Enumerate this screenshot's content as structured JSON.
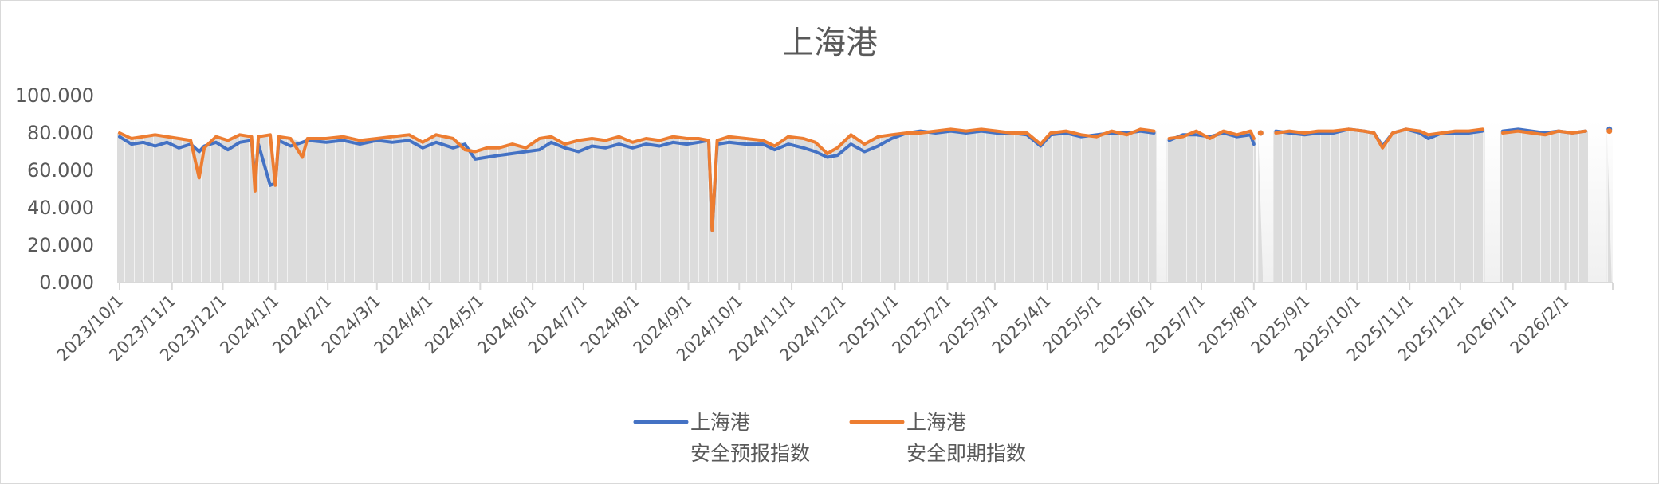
{
  "chart_data": {
    "type": "line",
    "title": "上海港",
    "xlabel": "",
    "ylabel": "",
    "ylim": [
      0,
      100
    ],
    "yticks": [
      "0.000",
      "20.000",
      "40.000",
      "60.000",
      "80.000",
      "100.000"
    ],
    "xlim": [
      "2023-10-01",
      "2026-03-01"
    ],
    "xticks": [
      "2023/10/1",
      "2023/11/1",
      "2023/12/1",
      "2024/1/1",
      "2024/2/1",
      "2024/3/1",
      "2024/4/1",
      "2024/5/1",
      "2024/6/1",
      "2024/7/1",
      "2024/8/1",
      "2024/9/1",
      "2024/10/1",
      "2024/11/1",
      "2024/12/1",
      "2025/1/1",
      "2025/2/1",
      "2025/3/1",
      "2025/4/1",
      "2025/5/1",
      "2025/6/1",
      "2025/7/1",
      "2025/8/1",
      "2025/9/1",
      "2025/10/1",
      "2025/11/1",
      "2025/12/1",
      "2026/1/1",
      "2026/2/1"
    ],
    "grid": false,
    "legend": "bottom",
    "colors": {
      "forecast": "#4472c4",
      "spot": "#ed7d31",
      "area": "#d9d9d9"
    },
    "series": [
      {
        "name": "上海港\n安全预报指数",
        "line1": "上海港",
        "line2": "安全预报指数",
        "key": "forecast"
      },
      {
        "name": "上海港\n安全即期指数",
        "line1": "上海港",
        "line2": "安全即期指数",
        "key": "spot"
      }
    ],
    "points": [
      [
        "2023-10-01",
        78,
        80
      ],
      [
        "2023-10-08",
        74,
        77
      ],
      [
        "2023-10-15",
        75,
        78
      ],
      [
        "2023-10-22",
        73,
        79
      ],
      [
        "2023-10-29",
        75,
        78
      ],
      [
        "2023-11-05",
        72,
        77
      ],
      [
        "2023-11-12",
        74,
        76
      ],
      [
        "2023-11-17",
        70,
        56
      ],
      [
        "2023-11-20",
        73,
        72
      ],
      [
        "2023-11-27",
        75,
        78
      ],
      [
        "2023-12-04",
        71,
        76
      ],
      [
        "2023-12-11",
        75,
        79
      ],
      [
        "2023-12-18",
        76,
        78
      ],
      [
        "2023-12-20",
        55,
        49
      ],
      [
        "2023-12-22",
        74,
        78
      ],
      [
        "2023-12-29",
        52,
        79
      ],
      [
        "2024-01-01",
        53,
        52
      ],
      [
        "2024-01-03",
        76,
        78
      ],
      [
        "2024-01-10",
        73,
        77
      ],
      [
        "2024-01-17",
        75,
        67
      ],
      [
        "2024-01-20",
        76,
        77
      ],
      [
        "2024-01-31",
        75,
        77
      ],
      [
        "2024-02-10",
        76,
        78
      ],
      [
        "2024-02-20",
        74,
        76
      ],
      [
        "2024-03-01",
        76,
        77
      ],
      [
        "2024-03-10",
        75,
        78
      ],
      [
        "2024-03-20",
        76,
        79
      ],
      [
        "2024-03-28",
        72,
        75
      ],
      [
        "2024-04-05",
        75,
        79
      ],
      [
        "2024-04-15",
        72,
        77
      ],
      [
        "2024-04-22",
        74,
        71
      ],
      [
        "2024-04-28",
        66,
        70
      ],
      [
        "2024-05-05",
        67,
        72
      ],
      [
        "2024-05-12",
        68,
        72
      ],
      [
        "2024-05-20",
        69,
        74
      ],
      [
        "2024-05-28",
        70,
        72
      ],
      [
        "2024-06-05",
        71,
        77
      ],
      [
        "2024-06-12",
        75,
        78
      ],
      [
        "2024-06-20",
        72,
        74
      ],
      [
        "2024-06-28",
        70,
        76
      ],
      [
        "2024-07-06",
        73,
        77
      ],
      [
        "2024-07-14",
        72,
        76
      ],
      [
        "2024-07-22",
        74,
        78
      ],
      [
        "2024-07-30",
        72,
        75
      ],
      [
        "2024-08-07",
        74,
        77
      ],
      [
        "2024-08-15",
        73,
        76
      ],
      [
        "2024-08-23",
        75,
        78
      ],
      [
        "2024-08-31",
        74,
        77
      ],
      [
        "2024-09-07",
        75,
        77
      ],
      [
        "2024-09-13",
        76,
        76
      ],
      [
        "2024-09-15",
        28,
        28
      ],
      [
        "2024-09-18",
        74,
        76
      ],
      [
        "2024-09-25",
        75,
        78
      ],
      [
        "2024-10-05",
        74,
        77
      ],
      [
        "2024-10-15",
        74,
        76
      ],
      [
        "2024-10-22",
        71,
        73
      ],
      [
        "2024-10-30",
        74,
        78
      ],
      [
        "2024-11-08",
        72,
        77
      ],
      [
        "2024-11-15",
        70,
        75
      ],
      [
        "2024-11-22",
        67,
        69
      ],
      [
        "2024-11-28",
        68,
        72
      ],
      [
        "2024-12-06",
        74,
        79
      ],
      [
        "2024-12-14",
        70,
        74
      ],
      [
        "2024-12-22",
        73,
        78
      ],
      [
        "2024-12-30",
        77,
        79
      ],
      [
        "2025-01-08",
        80,
        80
      ],
      [
        "2025-01-16",
        81,
        80
      ],
      [
        "2025-01-25",
        80,
        81
      ],
      [
        "2025-02-03",
        81,
        82
      ],
      [
        "2025-02-12",
        80,
        81
      ],
      [
        "2025-02-21",
        81,
        82
      ],
      [
        "2025-03-02",
        80,
        81
      ],
      [
        "2025-03-11",
        80,
        80
      ],
      [
        "2025-03-20",
        79,
        80
      ],
      [
        "2025-03-28",
        73,
        74
      ],
      [
        "2025-04-03",
        79,
        80
      ],
      [
        "2025-04-12",
        80,
        81
      ],
      [
        "2025-04-21",
        78,
        79
      ],
      [
        "2025-04-30",
        79,
        78
      ],
      [
        "2025-05-09",
        80,
        81
      ],
      [
        "2025-05-18",
        80,
        79
      ],
      [
        "2025-05-26",
        81,
        82
      ],
      [
        "2025-06-03",
        80,
        81
      ],
      [
        "2025-06-08",
        null,
        null
      ],
      [
        "2025-06-12",
        76,
        77
      ],
      [
        "2025-06-20",
        79,
        78
      ],
      [
        "2025-06-28",
        79,
        81
      ],
      [
        "2025-07-06",
        78,
        77
      ],
      [
        "2025-07-14",
        80,
        81
      ],
      [
        "2025-07-22",
        78,
        79
      ],
      [
        "2025-07-30",
        79,
        81
      ],
      [
        "2025-08-01",
        74,
        77
      ],
      [
        "2025-08-03",
        null,
        null
      ],
      [
        "2025-08-05",
        80,
        80
      ],
      [
        "2025-08-09",
        null,
        null
      ],
      [
        "2025-08-14",
        81,
        80
      ],
      [
        "2025-08-22",
        80,
        81
      ],
      [
        "2025-08-31",
        79,
        80
      ],
      [
        "2025-09-08",
        80,
        81
      ],
      [
        "2025-09-17",
        80,
        81
      ],
      [
        "2025-09-26",
        82,
        82
      ],
      [
        "2025-10-05",
        81,
        81
      ],
      [
        "2025-10-11",
        80,
        80
      ],
      [
        "2025-10-16",
        73,
        72
      ],
      [
        "2025-10-22",
        80,
        80
      ],
      [
        "2025-10-30",
        82,
        82
      ],
      [
        "2025-11-07",
        80,
        81
      ],
      [
        "2025-11-12",
        77,
        79
      ],
      [
        "2025-11-20",
        80,
        80
      ],
      [
        "2025-11-28",
        80,
        81
      ],
      [
        "2025-12-06",
        80,
        81
      ],
      [
        "2025-12-14",
        81,
        82
      ],
      [
        "2025-12-20",
        null,
        null
      ],
      [
        "2025-12-26",
        81,
        80
      ],
      [
        "2026-01-04",
        82,
        81
      ],
      [
        "2026-01-12",
        81,
        80
      ],
      [
        "2026-01-20",
        80,
        79
      ],
      [
        "2026-01-28",
        81,
        81
      ],
      [
        "2026-02-05",
        80,
        80
      ],
      [
        "2026-02-13",
        81,
        81
      ],
      [
        "2026-02-18",
        null,
        null
      ],
      [
        "2026-02-27",
        82,
        81
      ]
    ]
  }
}
